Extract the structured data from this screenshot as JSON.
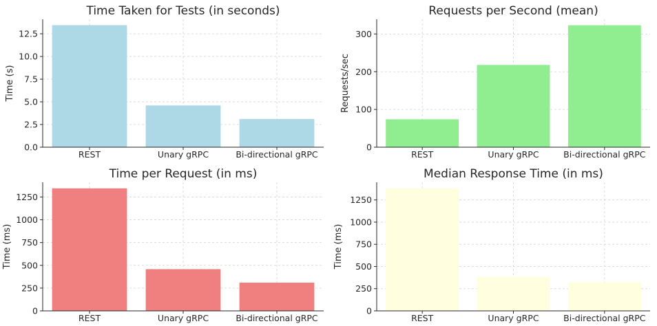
{
  "chart_data": [
    {
      "type": "bar",
      "title": "Time Taken for Tests (in seconds)",
      "xlabel": "",
      "ylabel": "Time (s)",
      "categories": [
        "REST",
        "Unary gRPC",
        "Bi-directional gRPC"
      ],
      "values": [
        13.45,
        4.6,
        3.1
      ],
      "ylim": [
        0,
        14.1
      ],
      "yticks": [
        0,
        2.5,
        5,
        7.5,
        10,
        12.5
      ],
      "ytick_labels": [
        "0.0",
        "2.5",
        "5.0",
        "7.5",
        "10.0",
        "12.5"
      ],
      "color": "#add8e6",
      "grid": true
    },
    {
      "type": "bar",
      "title": "Requests per Second (mean)",
      "xlabel": "",
      "ylabel": "Requests/sec",
      "categories": [
        "REST",
        "Unary gRPC",
        "Bi-directional gRPC"
      ],
      "values": [
        74,
        218,
        323
      ],
      "ylim": [
        0,
        339
      ],
      "yticks": [
        0,
        100,
        200,
        300
      ],
      "ytick_labels": [
        "0",
        "100",
        "200",
        "300"
      ],
      "color": "#90ee90",
      "grid": true
    },
    {
      "type": "bar",
      "title": "Time per Request (in ms)",
      "xlabel": "",
      "ylabel": "Time (ms)",
      "categories": [
        "REST",
        "Unary gRPC",
        "Bi-directional gRPC"
      ],
      "values": [
        1345,
        458,
        310
      ],
      "ylim": [
        0,
        1412
      ],
      "yticks": [
        0,
        250,
        500,
        750,
        1000,
        1250
      ],
      "ytick_labels": [
        "0",
        "250",
        "500",
        "750",
        "1000",
        "1250"
      ],
      "color": "#f08080",
      "grid": true
    },
    {
      "type": "bar",
      "title": "Median Response Time (in ms)",
      "xlabel": "",
      "ylabel": "Time (ms)",
      "categories": [
        "REST",
        "Unary gRPC",
        "Bi-directional gRPC"
      ],
      "values": [
        1380,
        385,
        325
      ],
      "ylim": [
        0,
        1449
      ],
      "yticks": [
        0,
        250,
        500,
        750,
        1000,
        1250
      ],
      "ytick_labels": [
        "0",
        "250",
        "500",
        "750",
        "1000",
        "1250"
      ],
      "color": "#ffffe0",
      "grid": true
    }
  ]
}
